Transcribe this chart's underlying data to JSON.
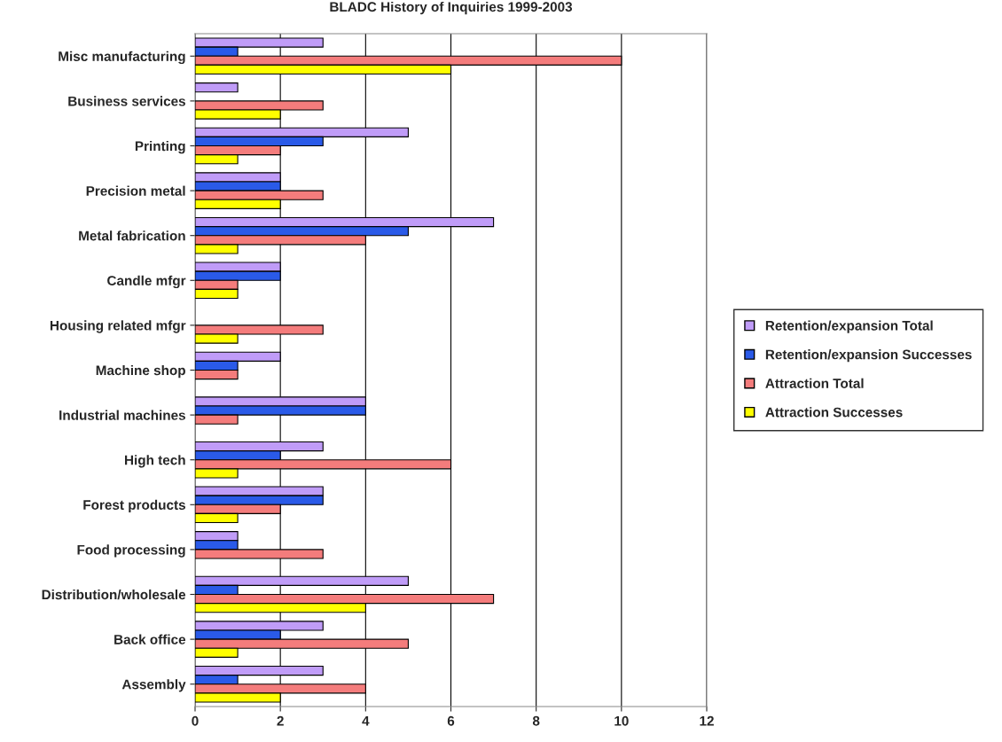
{
  "chart_data": {
    "type": "bar",
    "orientation": "horizontal",
    "title": "BLADC History of Inquiries 1999-2003",
    "categories": [
      "Misc manufacturing",
      "Business services",
      "Printing",
      "Precision metal",
      "Metal fabrication",
      "Candle mfgr",
      "Housing related mfgr",
      "Machine shop",
      "Industrial machines",
      "High tech",
      "Forest products",
      "Food processing",
      "Distribution/wholesale",
      "Back office",
      "Assembly"
    ],
    "series": [
      {
        "name": "Retention/expansion Total",
        "color": "#c09cf8",
        "values": [
          3,
          1,
          5,
          2,
          7,
          2,
          null,
          2,
          4,
          3,
          3,
          1,
          5,
          3,
          3
        ]
      },
      {
        "name": "Retention/expansion Successes",
        "color": "#2a5ae8",
        "values": [
          1,
          null,
          3,
          2,
          5,
          2,
          null,
          1,
          4,
          2,
          3,
          1,
          1,
          2,
          1
        ]
      },
      {
        "name": "Attraction Total",
        "color": "#f47c7c",
        "values": [
          10,
          3,
          2,
          3,
          4,
          1,
          3,
          1,
          1,
          6,
          2,
          3,
          7,
          5,
          4
        ]
      },
      {
        "name": "Attraction Successes",
        "color": "#ffff00",
        "values": [
          6,
          2,
          1,
          2,
          1,
          1,
          1,
          null,
          null,
          1,
          1,
          null,
          4,
          1,
          2
        ]
      }
    ],
    "xlim": [
      0,
      12
    ],
    "xticks": [
      0,
      2,
      4,
      6,
      8,
      10,
      12
    ],
    "grid": "x",
    "legend": "right"
  }
}
